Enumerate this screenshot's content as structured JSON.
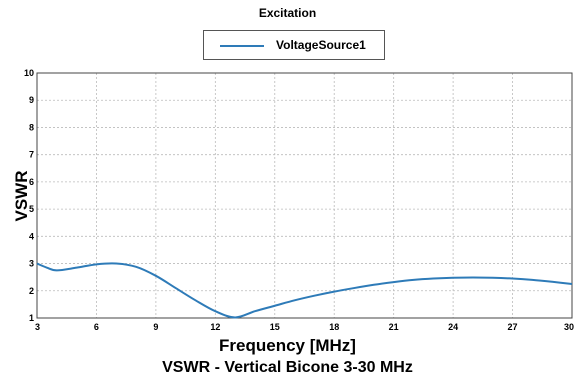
{
  "chart_data": {
    "type": "line",
    "title": "Excitation",
    "subtitle": "VSWR - Vertical Bicone 3-30 MHz",
    "xlabel": "Frequency [MHz]",
    "ylabel": "VSWR",
    "xlim": [
      3,
      30
    ],
    "ylim": [
      1,
      10
    ],
    "xticks": [
      3,
      6,
      9,
      12,
      15,
      18,
      21,
      24,
      27,
      30
    ],
    "yticks": [
      1,
      2,
      3,
      4,
      5,
      6,
      7,
      8,
      9,
      10
    ],
    "grid": true,
    "legend_position": "top-center",
    "series": [
      {
        "name": "VoltageSource1",
        "color": "#2e7bb8",
        "x": [
          3,
          3.5,
          4,
          5,
          6,
          7,
          8,
          9,
          10,
          11,
          12,
          13,
          14,
          15,
          16,
          17,
          18,
          19,
          20,
          21,
          22,
          23,
          24,
          25,
          26,
          27,
          28,
          29,
          30
        ],
        "y": [
          3.0,
          2.85,
          2.75,
          2.85,
          2.97,
          3.0,
          2.88,
          2.55,
          2.1,
          1.65,
          1.25,
          1.02,
          1.25,
          1.45,
          1.65,
          1.82,
          1.97,
          2.1,
          2.22,
          2.32,
          2.4,
          2.45,
          2.48,
          2.49,
          2.48,
          2.45,
          2.4,
          2.33,
          2.25
        ]
      }
    ]
  }
}
